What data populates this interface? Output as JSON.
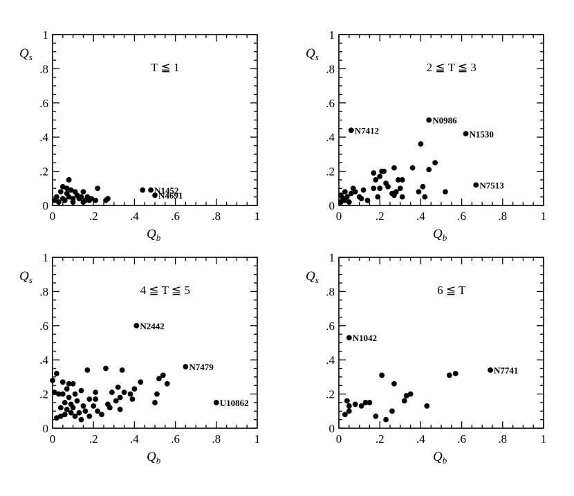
{
  "chart_data": [
    {
      "type": "scatter",
      "title": "T ≦ 1",
      "xlabel": "Q_b",
      "ylabel": "Q_s",
      "xlim": [
        0,
        1
      ],
      "ylim": [
        0,
        1
      ],
      "x_ticks": [
        "0",
        ".2",
        ".4",
        ".6",
        ".8",
        "1"
      ],
      "y_ticks": [
        "0",
        ".2",
        ".4",
        ".6",
        ".8",
        "1"
      ],
      "points": [
        {
          "x": 0.01,
          "y": 0.03
        },
        {
          "x": 0.02,
          "y": 0.05
        },
        {
          "x": 0.03,
          "y": 0.02
        },
        {
          "x": 0.04,
          "y": 0.08
        },
        {
          "x": 0.05,
          "y": 0.04
        },
        {
          "x": 0.05,
          "y": 0.11
        },
        {
          "x": 0.06,
          "y": 0.03
        },
        {
          "x": 0.07,
          "y": 0.07
        },
        {
          "x": 0.07,
          "y": 0.1
        },
        {
          "x": 0.08,
          "y": 0.05
        },
        {
          "x": 0.08,
          "y": 0.15
        },
        {
          "x": 0.09,
          "y": 0.09
        },
        {
          "x": 0.1,
          "y": 0.04
        },
        {
          "x": 0.1,
          "y": 0.02
        },
        {
          "x": 0.11,
          "y": 0.08
        },
        {
          "x": 0.12,
          "y": 0.06
        },
        {
          "x": 0.13,
          "y": 0.04
        },
        {
          "x": 0.14,
          "y": 0.05
        },
        {
          "x": 0.15,
          "y": 0.08
        },
        {
          "x": 0.15,
          "y": 0.02
        },
        {
          "x": 0.16,
          "y": 0.03
        },
        {
          "x": 0.17,
          "y": 0.05
        },
        {
          "x": 0.18,
          "y": 0.03
        },
        {
          "x": 0.19,
          "y": 0.04
        },
        {
          "x": 0.21,
          "y": 0.03
        },
        {
          "x": 0.22,
          "y": 0.1
        },
        {
          "x": 0.26,
          "y": 0.03
        },
        {
          "x": 0.27,
          "y": 0.04
        },
        {
          "x": 0.44,
          "y": 0.09
        },
        {
          "x": 0.48,
          "y": 0.09,
          "label": "N1452"
        },
        {
          "x": 0.5,
          "y": 0.06,
          "label": "N4691"
        }
      ]
    },
    {
      "type": "scatter",
      "title": "2 ≦ T ≦ 3",
      "xlabel": "Q_b",
      "ylabel": "Q_s",
      "xlim": [
        0,
        1
      ],
      "ylim": [
        0,
        1
      ],
      "x_ticks": [
        "0",
        ".2",
        ".4",
        ".6",
        ".8",
        "1"
      ],
      "y_ticks": [
        "0",
        ".2",
        ".4",
        ".6",
        ".8",
        "1"
      ],
      "points": [
        {
          "x": 0.01,
          "y": 0.02
        },
        {
          "x": 0.01,
          "y": 0.06
        },
        {
          "x": 0.02,
          "y": 0.04
        },
        {
          "x": 0.03,
          "y": 0.03
        },
        {
          "x": 0.03,
          "y": 0.08
        },
        {
          "x": 0.04,
          "y": 0.05
        },
        {
          "x": 0.05,
          "y": 0.02
        },
        {
          "x": 0.06,
          "y": 0.07
        },
        {
          "x": 0.07,
          "y": 0.1
        },
        {
          "x": 0.08,
          "y": 0.08
        },
        {
          "x": 0.1,
          "y": 0.05
        },
        {
          "x": 0.11,
          "y": 0.04
        },
        {
          "x": 0.12,
          "y": 0.09
        },
        {
          "x": 0.14,
          "y": 0.03
        },
        {
          "x": 0.17,
          "y": 0.1
        },
        {
          "x": 0.17,
          "y": 0.19
        },
        {
          "x": 0.18,
          "y": 0.15
        },
        {
          "x": 0.19,
          "y": 0.05
        },
        {
          "x": 0.2,
          "y": 0.1
        },
        {
          "x": 0.2,
          "y": 0.17
        },
        {
          "x": 0.21,
          "y": 0.2
        },
        {
          "x": 0.22,
          "y": 0.2
        },
        {
          "x": 0.23,
          "y": 0.13
        },
        {
          "x": 0.24,
          "y": 0.11
        },
        {
          "x": 0.26,
          "y": 0.07
        },
        {
          "x": 0.27,
          "y": 0.22
        },
        {
          "x": 0.27,
          "y": 0.06
        },
        {
          "x": 0.28,
          "y": 0.08
        },
        {
          "x": 0.29,
          "y": 0.15
        },
        {
          "x": 0.3,
          "y": 0.1
        },
        {
          "x": 0.31,
          "y": 0.05
        },
        {
          "x": 0.31,
          "y": 0.15
        },
        {
          "x": 0.36,
          "y": 0.22
        },
        {
          "x": 0.39,
          "y": 0.08
        },
        {
          "x": 0.4,
          "y": 0.36
        },
        {
          "x": 0.41,
          "y": 0.11
        },
        {
          "x": 0.42,
          "y": 0.05
        },
        {
          "x": 0.44,
          "y": 0.21
        },
        {
          "x": 0.47,
          "y": 0.25
        },
        {
          "x": 0.52,
          "y": 0.08
        },
        {
          "x": 0.06,
          "y": 0.44,
          "label": "N7412"
        },
        {
          "x": 0.44,
          "y": 0.5,
          "label": "N0986"
        },
        {
          "x": 0.62,
          "y": 0.42,
          "label": "N1530"
        },
        {
          "x": 0.67,
          "y": 0.12,
          "label": "N7513"
        }
      ]
    },
    {
      "type": "scatter",
      "title": "4 ≦ T ≦ 5",
      "xlabel": "Q_b",
      "ylabel": "Q_s",
      "xlim": [
        0,
        1
      ],
      "ylim": [
        0,
        1
      ],
      "x_ticks": [
        "0",
        ".2",
        ".4",
        ".6",
        ".8",
        "1"
      ],
      "y_ticks": [
        "0",
        ".2",
        ".4",
        ".6",
        ".8",
        "1"
      ],
      "points": [
        {
          "x": 0.0,
          "y": 0.28
        },
        {
          "x": 0.01,
          "y": 0.21
        },
        {
          "x": 0.02,
          "y": 0.32
        },
        {
          "x": 0.02,
          "y": 0.06
        },
        {
          "x": 0.03,
          "y": 0.2
        },
        {
          "x": 0.04,
          "y": 0.07
        },
        {
          "x": 0.04,
          "y": 0.12
        },
        {
          "x": 0.05,
          "y": 0.27
        },
        {
          "x": 0.05,
          "y": 0.2
        },
        {
          "x": 0.06,
          "y": 0.15
        },
        {
          "x": 0.06,
          "y": 0.08
        },
        {
          "x": 0.07,
          "y": 0.23
        },
        {
          "x": 0.07,
          "y": 0.11
        },
        {
          "x": 0.08,
          "y": 0.26
        },
        {
          "x": 0.08,
          "y": 0.18
        },
        {
          "x": 0.09,
          "y": 0.09
        },
        {
          "x": 0.09,
          "y": 0.14
        },
        {
          "x": 0.1,
          "y": 0.26
        },
        {
          "x": 0.1,
          "y": 0.12
        },
        {
          "x": 0.11,
          "y": 0.2
        },
        {
          "x": 0.11,
          "y": 0.07
        },
        {
          "x": 0.12,
          "y": 0.16
        },
        {
          "x": 0.13,
          "y": 0.09
        },
        {
          "x": 0.14,
          "y": 0.22
        },
        {
          "x": 0.14,
          "y": 0.05
        },
        {
          "x": 0.15,
          "y": 0.13
        },
        {
          "x": 0.16,
          "y": 0.1
        },
        {
          "x": 0.17,
          "y": 0.34
        },
        {
          "x": 0.18,
          "y": 0.17
        },
        {
          "x": 0.18,
          "y": 0.07
        },
        {
          "x": 0.2,
          "y": 0.13
        },
        {
          "x": 0.21,
          "y": 0.21
        },
        {
          "x": 0.21,
          "y": 0.17
        },
        {
          "x": 0.22,
          "y": 0.1
        },
        {
          "x": 0.24,
          "y": 0.08
        },
        {
          "x": 0.26,
          "y": 0.35
        },
        {
          "x": 0.27,
          "y": 0.14
        },
        {
          "x": 0.28,
          "y": 0.12
        },
        {
          "x": 0.29,
          "y": 0.21
        },
        {
          "x": 0.31,
          "y": 0.16
        },
        {
          "x": 0.32,
          "y": 0.24
        },
        {
          "x": 0.33,
          "y": 0.18
        },
        {
          "x": 0.33,
          "y": 0.11
        },
        {
          "x": 0.34,
          "y": 0.34
        },
        {
          "x": 0.35,
          "y": 0.21
        },
        {
          "x": 0.38,
          "y": 0.2
        },
        {
          "x": 0.39,
          "y": 0.17
        },
        {
          "x": 0.4,
          "y": 0.23
        },
        {
          "x": 0.43,
          "y": 0.27
        },
        {
          "x": 0.5,
          "y": 0.15
        },
        {
          "x": 0.51,
          "y": 0.2
        },
        {
          "x": 0.52,
          "y": 0.29
        },
        {
          "x": 0.54,
          "y": 0.31
        },
        {
          "x": 0.56,
          "y": 0.26
        },
        {
          "x": 0.41,
          "y": 0.6,
          "label": "N2442"
        },
        {
          "x": 0.65,
          "y": 0.36,
          "label": "N7479"
        },
        {
          "x": 0.8,
          "y": 0.15,
          "label": "U10862"
        }
      ]
    },
    {
      "type": "scatter",
      "title": "6 ≦ T",
      "xlabel": "Q_b",
      "ylabel": "Q_s",
      "xlim": [
        0,
        1
      ],
      "ylim": [
        0,
        1
      ],
      "x_ticks": [
        "0",
        ".2",
        ".4",
        ".6",
        ".8",
        "1"
      ],
      "y_ticks": [
        "0",
        ".2",
        ".4",
        ".6",
        ".8",
        "1"
      ],
      "points": [
        {
          "x": 0.03,
          "y": 0.08
        },
        {
          "x": 0.04,
          "y": 0.16
        },
        {
          "x": 0.05,
          "y": 0.13
        },
        {
          "x": 0.05,
          "y": 0.1
        },
        {
          "x": 0.08,
          "y": 0.14
        },
        {
          "x": 0.11,
          "y": 0.13
        },
        {
          "x": 0.13,
          "y": 0.15
        },
        {
          "x": 0.15,
          "y": 0.15
        },
        {
          "x": 0.18,
          "y": 0.07
        },
        {
          "x": 0.21,
          "y": 0.31
        },
        {
          "x": 0.23,
          "y": 0.05
        },
        {
          "x": 0.26,
          "y": 0.1
        },
        {
          "x": 0.27,
          "y": 0.26
        },
        {
          "x": 0.32,
          "y": 0.16
        },
        {
          "x": 0.33,
          "y": 0.19
        },
        {
          "x": 0.35,
          "y": 0.2
        },
        {
          "x": 0.43,
          "y": 0.13
        },
        {
          "x": 0.54,
          "y": 0.31
        },
        {
          "x": 0.57,
          "y": 0.32
        },
        {
          "x": 0.05,
          "y": 0.53,
          "label": "N1042"
        },
        {
          "x": 0.74,
          "y": 0.34,
          "label": "N7741"
        }
      ]
    }
  ]
}
